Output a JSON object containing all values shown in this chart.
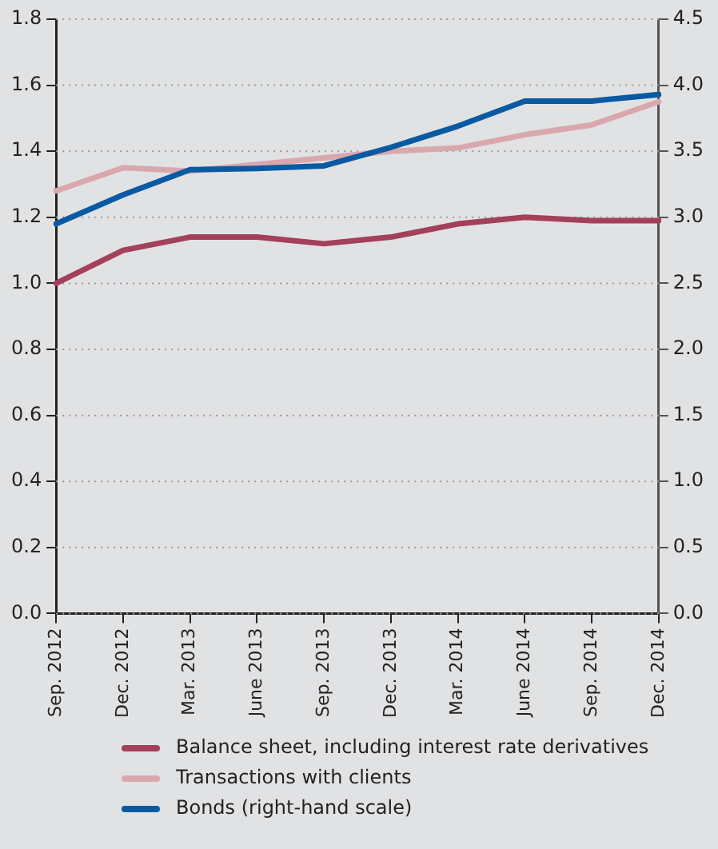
{
  "chart_data": {
    "type": "line",
    "categories": [
      "Sep. 2012",
      "Dec. 2012",
      "Mar. 2013",
      "June 2013",
      "Sep. 2013",
      "Dec. 2013",
      "Mar. 2014",
      "June 2014",
      "Sep. 2014",
      "Dec. 2014"
    ],
    "series": [
      {
        "name": "Balance sheet, including interest rate derivatives",
        "color": "#a3405c",
        "values": [
          1.0,
          1.1,
          1.14,
          1.14,
          1.12,
          1.14,
          1.18,
          1.2,
          1.19,
          1.19
        ]
      },
      {
        "name": "Transactions with clients",
        "color": "#d9a8ad",
        "values": [
          1.28,
          1.35,
          1.34,
          null,
          null,
          1.4,
          1.41,
          1.45,
          1.48,
          1.55
        ]
      },
      {
        "name": "Bonds (right-hand scale)",
        "color": "#0a5aa3",
        "axis": "y2",
        "values": [
          2.95,
          3.17,
          3.36,
          3.37,
          3.39,
          3.53,
          3.69,
          3.88,
          3.88,
          3.93
        ]
      }
    ],
    "ylim": [
      0,
      1.8
    ],
    "yticks": [
      {
        "value": 0,
        "label": "0.0"
      },
      0.2,
      0.4,
      0.6,
      0.8,
      {
        "value": 1,
        "label": "1.0"
      },
      1.2,
      1.4,
      1.6,
      1.8
    ],
    "y2lim": [
      0,
      4.5
    ],
    "y2ticks": [
      {
        "value": 0,
        "label": "0.0"
      },
      0.5,
      {
        "value": 1,
        "label": "1.0"
      },
      1.5,
      {
        "value": 2,
        "label": "2.0"
      },
      2.5,
      {
        "value": 3,
        "label": "3.0"
      },
      3.5,
      {
        "value": 4,
        "label": "4.0"
      },
      4.5
    ],
    "grid": "y",
    "legend": "bottom",
    "marker": "none",
    "line_style": "solid"
  }
}
